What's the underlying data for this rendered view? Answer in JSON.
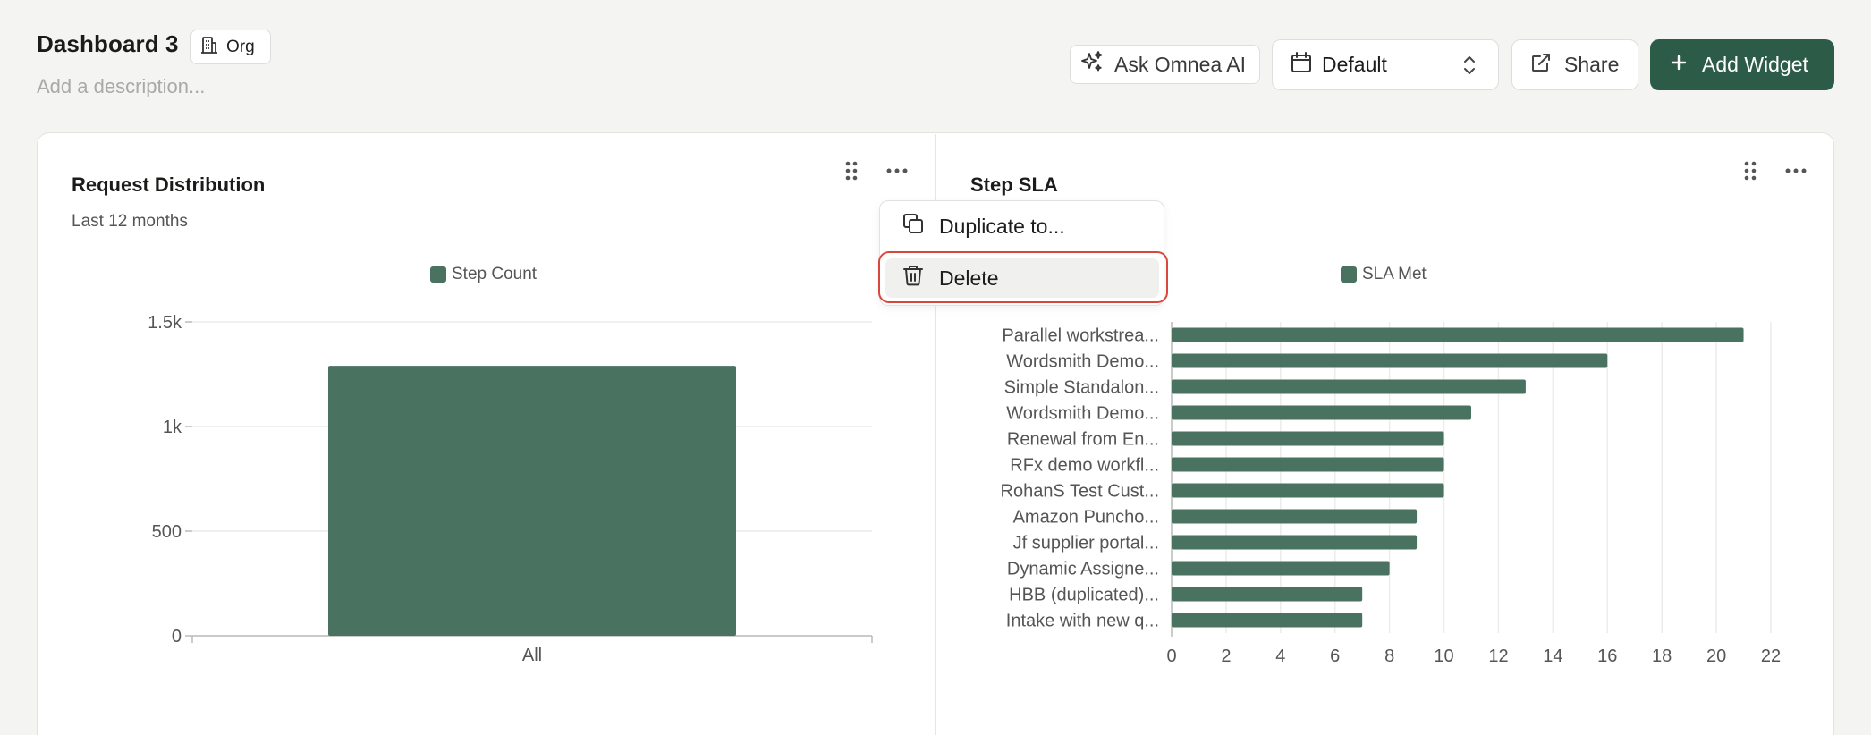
{
  "header": {
    "title": "Dashboard 3",
    "org_badge": "Org",
    "description_placeholder": "Add a description..."
  },
  "toolbar": {
    "ask_ai": "Ask Omnea AI",
    "date_select": "Default",
    "share": "Share",
    "add_widget": "Add Widget",
    "accent_color": "#2c5c47"
  },
  "widgets": {
    "request_distribution": {
      "title": "Request Distribution",
      "subtitle": "Last 12 months"
    },
    "step_sla": {
      "title": "Step SLA"
    }
  },
  "menu": {
    "duplicate": "Duplicate to...",
    "delete": "Delete"
  },
  "chart_data": [
    {
      "type": "bar",
      "legend": [
        "Step Count"
      ],
      "legend_placement": "top-center",
      "categories": [
        "All"
      ],
      "series": [
        {
          "name": "Step Count",
          "values": [
            1290
          ]
        }
      ],
      "ylim": [
        0,
        1500
      ],
      "yticks": [
        "0",
        "500",
        "1k",
        "1.5k"
      ],
      "grid": true,
      "color": "#4a7260"
    },
    {
      "type": "bar",
      "orientation": "horizontal",
      "legend": [
        "SLA Met"
      ],
      "legend_placement": "top-center",
      "categories": [
        "Parallel workstrea...",
        "Wordsmith Demo...",
        "Simple Standalon...",
        "Wordsmith Demo...",
        "Renewal from En...",
        "RFx demo workfl...",
        "RohanS Test Cust...",
        "Amazon Puncho...",
        "Jf supplier portal...",
        "Dynamic Assigne...",
        "HBB (duplicated)...",
        "Intake with new q..."
      ],
      "series": [
        {
          "name": "SLA Met",
          "values": [
            21,
            16,
            13,
            11,
            10,
            10,
            10,
            9,
            9,
            8,
            7,
            7
          ]
        }
      ],
      "xlim": [
        0,
        22
      ],
      "xticks": [
        "0",
        "2",
        "4",
        "6",
        "8",
        "10",
        "12",
        "14",
        "16",
        "18",
        "20",
        "22"
      ],
      "grid": true,
      "color": "#4a7260"
    }
  ]
}
